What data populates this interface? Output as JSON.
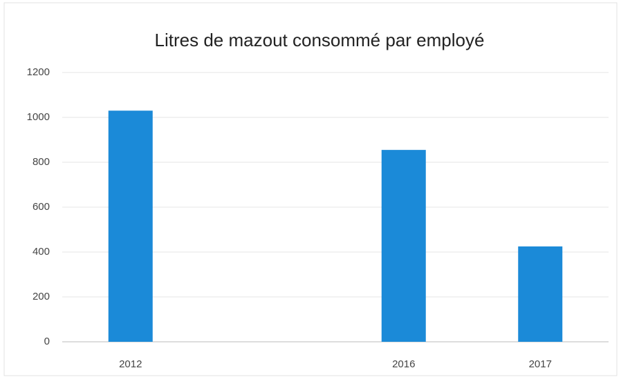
{
  "chart_data": {
    "type": "bar",
    "title": "Litres de mazout consommé par employé",
    "categories": [
      "2012",
      null,
      "2016",
      "2017"
    ],
    "values": [
      1030,
      null,
      855,
      425
    ],
    "color": "#1b8ad8",
    "ylim": [
      0,
      1200
    ],
    "yticks": [
      0,
      200,
      400,
      600,
      800,
      1000,
      1200
    ],
    "grid": true
  }
}
